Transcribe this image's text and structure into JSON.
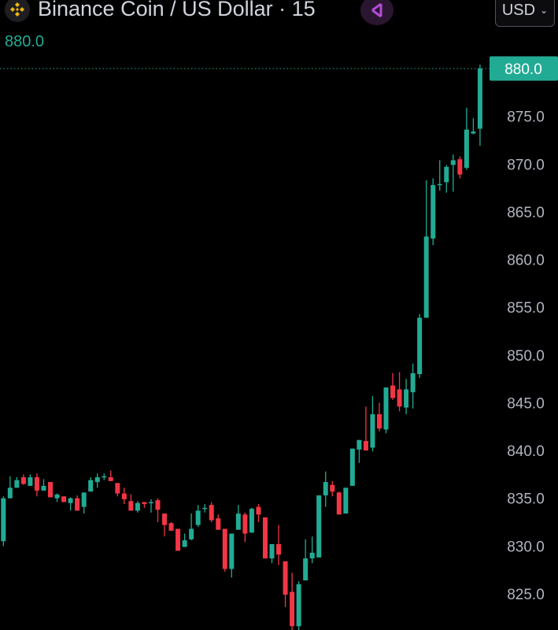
{
  "header": {
    "title": "Binance Coin / US Dollar · 15",
    "last_price": "880.0",
    "currency_button": "USD",
    "logo_icon": "bnb-logo-icon",
    "share_icon": "share-icon"
  },
  "colors": {
    "up": "#22ab94",
    "down": "#f23645",
    "axis_text": "#b2b5be",
    "background": "#000000"
  },
  "chart_data": {
    "type": "candlestick",
    "title": "Binance Coin / US Dollar · 15",
    "interval": "15",
    "y_axis": {
      "position": "right",
      "ylim": [
        821.2,
        887.2
      ],
      "ticks": [
        "825.0",
        "830.0",
        "835.0",
        "840.0",
        "845.0",
        "850.0",
        "855.0",
        "860.0",
        "865.0",
        "870.0",
        "875.0",
        "880.0"
      ]
    },
    "last_price_label": "880.0",
    "grid": false,
    "candles": [
      [
        830.5,
        835.2,
        830.0,
        835.0
      ],
      [
        835.0,
        837.3,
        835.0,
        836.1
      ],
      [
        836.1,
        837.2,
        836.1,
        836.9
      ],
      [
        837.2,
        837.5,
        836.4,
        836.5
      ],
      [
        836.3,
        837.5,
        836.3,
        837.2
      ],
      [
        837.2,
        837.6,
        835.2,
        835.8
      ],
      [
        835.8,
        837.0,
        835.8,
        836.3
      ],
      [
        836.7,
        836.7,
        835.1,
        835.1
      ],
      [
        835.0,
        835.5,
        834.6,
        835.4
      ],
      [
        835.2,
        835.2,
        834.6,
        834.6
      ],
      [
        834.5,
        835.1,
        833.7,
        835.0
      ],
      [
        835.0,
        835.3,
        833.7,
        833.7
      ],
      [
        834.1,
        835.6,
        833.4,
        835.6
      ],
      [
        835.7,
        837.2,
        835.7,
        836.9
      ],
      [
        836.7,
        837.6,
        836.1,
        837.2
      ],
      [
        837.2,
        837.6,
        836.9,
        837.3
      ],
      [
        837.2,
        837.9,
        836.8,
        836.8
      ],
      [
        836.6,
        836.6,
        835.2,
        835.5
      ],
      [
        835.5,
        836.1,
        834.4,
        834.9
      ],
      [
        834.7,
        835.4,
        833.7,
        833.7
      ],
      [
        833.7,
        834.7,
        833.5,
        834.5
      ],
      [
        834.6,
        834.6,
        834.0,
        834.4
      ],
      [
        834.5,
        834.9,
        833.5,
        834.6
      ],
      [
        834.8,
        835.0,
        832.5,
        833.8
      ],
      [
        833.4,
        833.4,
        831.0,
        832.2
      ],
      [
        832.4,
        832.5,
        831.6,
        831.6
      ],
      [
        831.8,
        831.8,
        829.5,
        829.5
      ],
      [
        829.9,
        831.3,
        829.9,
        830.6
      ],
      [
        830.7,
        833.4,
        830.6,
        831.8
      ],
      [
        832.2,
        834.3,
        832.0,
        833.7
      ],
      [
        833.9,
        834.4,
        833.5,
        834.0
      ],
      [
        834.3,
        834.6,
        832.5,
        832.7
      ],
      [
        832.9,
        833.3,
        831.7,
        831.7
      ],
      [
        831.8,
        831.8,
        827.3,
        827.6
      ],
      [
        827.6,
        831.3,
        826.7,
        831.3
      ],
      [
        831.7,
        834.3,
        831.7,
        833.4
      ],
      [
        833.3,
        833.5,
        830.4,
        831.3
      ],
      [
        831.4,
        834.0,
        831.4,
        833.9
      ],
      [
        834.1,
        834.4,
        832.5,
        833.3
      ],
      [
        833.0,
        833.0,
        828.7,
        828.7
      ],
      [
        828.7,
        830.2,
        828.2,
        830.2
      ],
      [
        830.2,
        832.2,
        828.0,
        829.1
      ],
      [
        828.4,
        828.4,
        823.6,
        824.9
      ],
      [
        825.2,
        827.2,
        821.2,
        821.6
      ],
      [
        821.6,
        826.3,
        821.2,
        826.0
      ],
      [
        826.4,
        830.7,
        826.4,
        828.7
      ],
      [
        828.7,
        831.0,
        828.2,
        829.3
      ],
      [
        828.8,
        835.3,
        828.8,
        835.3
      ],
      [
        835.3,
        837.8,
        834.1,
        836.7
      ],
      [
        836.4,
        836.8,
        835.2,
        835.7
      ],
      [
        835.6,
        835.7,
        833.3,
        833.3
      ],
      [
        833.4,
        836.1,
        833.4,
        836.1
      ],
      [
        836.3,
        840.2,
        836.3,
        840.2
      ],
      [
        840.1,
        841.1,
        838.7,
        841.1
      ],
      [
        841.0,
        844.6,
        840.0,
        840.0
      ],
      [
        840.3,
        845.7,
        839.9,
        843.8
      ],
      [
        843.8,
        845.0,
        842.0,
        842.3
      ],
      [
        842.2,
        846.6,
        841.8,
        846.6
      ],
      [
        846.8,
        848.1,
        845.3,
        845.5
      ],
      [
        846.4,
        848.2,
        844.1,
        844.6
      ],
      [
        844.5,
        847.5,
        843.8,
        846.4
      ],
      [
        846.1,
        849.1,
        844.4,
        848.1
      ],
      [
        848.0,
        854.3,
        847.6,
        853.9
      ],
      [
        853.9,
        868.3,
        853.9,
        862.4
      ],
      [
        862.2,
        868.5,
        861.5,
        867.8
      ],
      [
        867.8,
        870.4,
        867.2,
        867.9
      ],
      [
        868.1,
        869.9,
        867.0,
        869.7
      ],
      [
        869.9,
        871.0,
        867.1,
        870.4
      ],
      [
        870.5,
        870.8,
        868.5,
        868.9
      ],
      [
        869.6,
        875.9,
        869.4,
        873.6
      ],
      [
        873.2,
        874.8,
        873.1,
        873.4
      ],
      [
        873.7,
        880.4,
        871.9,
        880.0
      ]
    ],
    "candle_format": [
      "open",
      "high",
      "low",
      "close"
    ]
  }
}
